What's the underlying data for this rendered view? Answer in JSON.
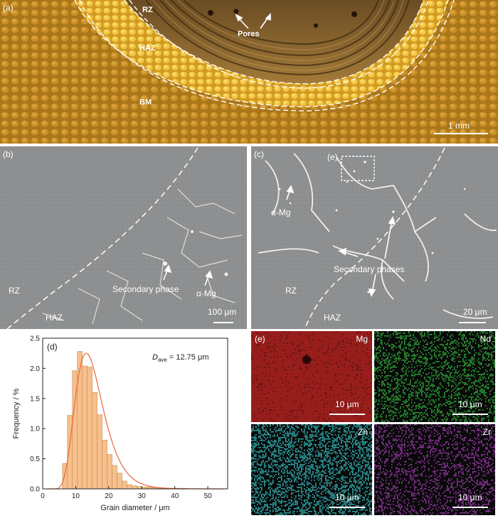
{
  "panel_a": {
    "label": "(a)",
    "zones": {
      "rz": "RZ",
      "haz": "HAZ",
      "bm": "BM"
    },
    "pores": "Pores",
    "scale": "1 mm"
  },
  "panel_b": {
    "label": "(b)",
    "rz": "RZ",
    "haz": "HAZ",
    "secondary": "Secondary phase",
    "alpha": "α-Mg",
    "scale": "100 μm"
  },
  "panel_c": {
    "label": "(c)",
    "inset": "(e)",
    "alpha": "α-Mg",
    "secondary": "Secondary phases",
    "rz": "RZ",
    "haz": "HAZ",
    "scale": "20 μm"
  },
  "panel_e": {
    "label": "(e)",
    "maps": [
      {
        "element": "Mg",
        "color": "#b3221f",
        "scale": "10 μm"
      },
      {
        "element": "Nd",
        "color": "#2fae3a",
        "scale": "10 μm"
      },
      {
        "element": "Zn",
        "color": "#32b6b8",
        "scale": "10 μm"
      },
      {
        "element": "Zr",
        "color": "#9a3ba8",
        "scale": "10 μm"
      }
    ]
  },
  "chart_data": {
    "type": "bar",
    "panel_label": "(d)",
    "xlabel": "Grain diameter / μm",
    "ylabel": "Frequency / %",
    "annotation": "D_ave = 12.75 μm",
    "annotation_main": "D",
    "annotation_sub": "ave",
    "annotation_rest": " = 12.75 μm",
    "xlim": [
      0,
      56
    ],
    "ylim": [
      0,
      2.5
    ],
    "xticks": [
      0,
      10,
      20,
      30,
      40,
      50
    ],
    "yticks": [
      0.0,
      0.5,
      1.0,
      1.5,
      2.0,
      2.5
    ],
    "ytick_labels": [
      "0.0",
      "0.5",
      "1.0",
      "1.5",
      "2.0",
      "2.5"
    ],
    "bin_width": 1.5,
    "bin_starts": [
      6,
      7.5,
      9,
      10.5,
      12,
      13.5,
      15,
      16.5,
      18,
      19.5,
      21,
      22.5,
      24,
      25.5,
      27,
      28.5,
      30,
      31.5,
      33,
      34.5,
      36,
      37.5,
      39,
      40.5,
      42
    ],
    "values": [
      0.42,
      1.22,
      1.96,
      2.28,
      2.04,
      2.02,
      1.6,
      1.23,
      0.81,
      0.57,
      0.39,
      0.26,
      0.13,
      0.07,
      0.05,
      0.04,
      0.03,
      0.03,
      0.02,
      0.01,
      0.01,
      0.01,
      0.01,
      0.01,
      0.01
    ],
    "fit": {
      "type": "lognormal",
      "peak_x": 13.2,
      "peak_y": 2.25
    },
    "bar_color": "#f6c08d",
    "fit_color": "#e8673a"
  }
}
